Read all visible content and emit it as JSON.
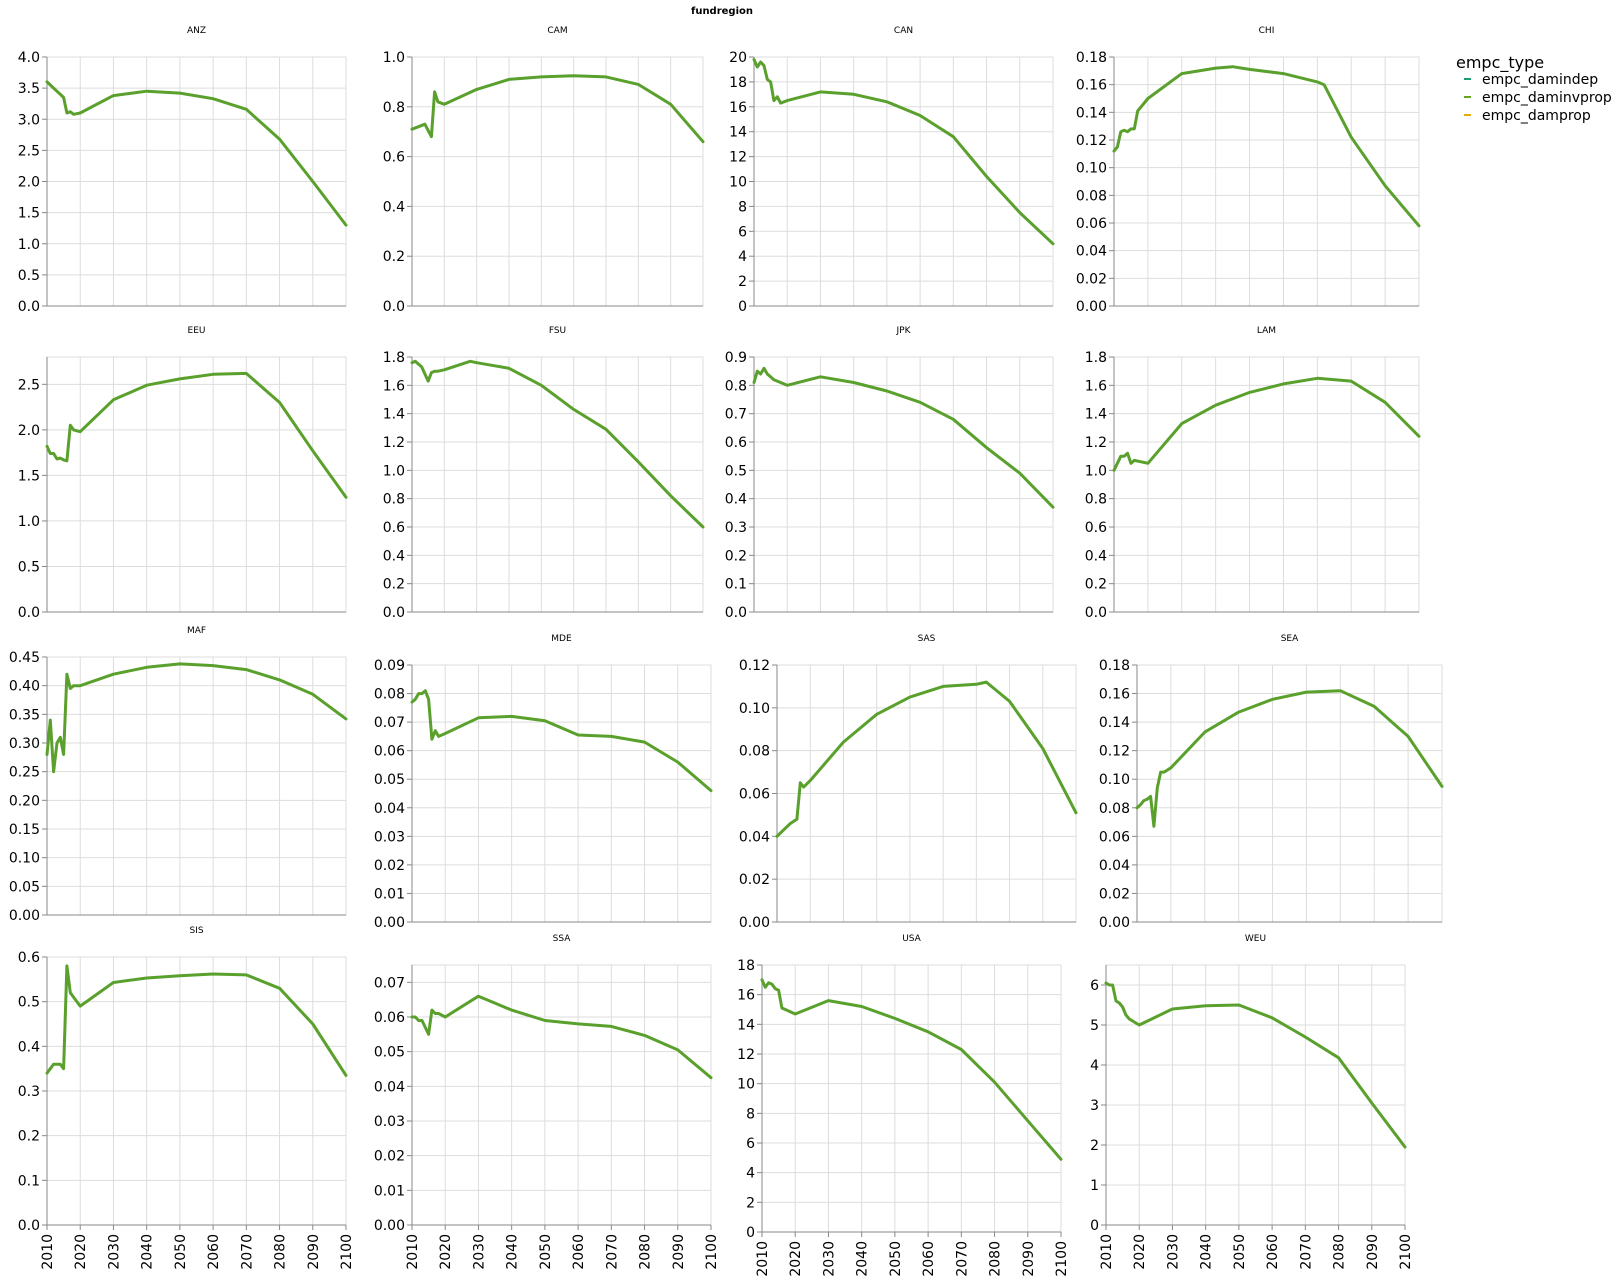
{
  "chart_data": {
    "type": "line",
    "title": "fundregion",
    "x_ticks": [
      2010,
      2020,
      2030,
      2040,
      2050,
      2060,
      2070,
      2080,
      2090,
      2100
    ],
    "xlim": [
      2010,
      2100
    ],
    "legend": {
      "title": "empc_type",
      "placement": "top-right",
      "entries": [
        {
          "name": "empc_damindep",
          "color": "#1b9e77"
        },
        {
          "name": "empc_daminvprop",
          "color": "#66a61e"
        },
        {
          "name": "empc_damprop",
          "color": "#e6ab02"
        }
      ]
    },
    "line_color": "#5aa02c",
    "panels": [
      {
        "region": "ANZ",
        "ylim": [
          0,
          4
        ],
        "y_ticks": [
          "0.0",
          "0.5",
          "1.0",
          "1.5",
          "2.0",
          "2.5",
          "3.0",
          "3.5",
          "4.0"
        ],
        "x": [
          2010,
          2012,
          2014,
          2015,
          2016,
          2017,
          2018,
          2020,
          2030,
          2040,
          2050,
          2060,
          2070,
          2080,
          2090,
          2100
        ],
        "y": [
          3.6,
          3.5,
          3.4,
          3.35,
          3.1,
          3.12,
          3.08,
          3.1,
          3.38,
          3.45,
          3.42,
          3.33,
          3.16,
          2.68,
          2.0,
          1.3
        ]
      },
      {
        "region": "CAM",
        "ylim": [
          0,
          1
        ],
        "y_ticks": [
          "0.0",
          "0.2",
          "0.4",
          "0.6",
          "0.8",
          "1.0"
        ],
        "x": [
          2010,
          2012,
          2014,
          2016,
          2017,
          2018,
          2020,
          2030,
          2040,
          2050,
          2060,
          2070,
          2080,
          2090,
          2100
        ],
        "y": [
          0.71,
          0.72,
          0.73,
          0.68,
          0.86,
          0.82,
          0.81,
          0.87,
          0.91,
          0.92,
          0.925,
          0.92,
          0.89,
          0.81,
          0.66
        ]
      },
      {
        "region": "CAN",
        "ylim": [
          0,
          20
        ],
        "y_ticks": [
          "0",
          "2",
          "4",
          "6",
          "8",
          "10",
          "12",
          "14",
          "16",
          "18",
          "20"
        ],
        "x": [
          2010,
          2011,
          2012,
          2013,
          2014,
          2015,
          2016,
          2017,
          2018,
          2020,
          2030,
          2040,
          2050,
          2060,
          2070,
          2080,
          2090,
          2100
        ],
        "y": [
          19.8,
          19.2,
          19.6,
          19.3,
          18.2,
          18.0,
          16.5,
          16.8,
          16.3,
          16.5,
          17.2,
          17.0,
          16.4,
          15.3,
          13.6,
          10.4,
          7.5,
          5.0
        ]
      },
      {
        "region": "CHI",
        "ylim": [
          0,
          0.18
        ],
        "y_ticks": [
          "0.00",
          "0.02",
          "0.04",
          "0.06",
          "0.08",
          "0.10",
          "0.12",
          "0.14",
          "0.16",
          "0.18"
        ],
        "x": [
          2010,
          2011,
          2012,
          2013,
          2014,
          2015,
          2016,
          2017,
          2018,
          2020,
          2030,
          2040,
          2045,
          2050,
          2060,
          2070,
          2072,
          2080,
          2090,
          2100
        ],
        "y": [
          0.112,
          0.115,
          0.126,
          0.127,
          0.126,
          0.128,
          0.128,
          0.141,
          0.144,
          0.15,
          0.168,
          0.172,
          0.173,
          0.171,
          0.168,
          0.162,
          0.16,
          0.122,
          0.087,
          0.058
        ]
      },
      {
        "region": "EEU",
        "ylim": [
          0,
          2.8
        ],
        "y_ticks": [
          "0.0",
          "0.5",
          "1.0",
          "1.5",
          "2.0",
          "2.5"
        ],
        "x": [
          2010,
          2011,
          2012,
          2013,
          2014,
          2015,
          2016,
          2017,
          2018,
          2020,
          2030,
          2040,
          2050,
          2060,
          2070,
          2080,
          2090,
          2100
        ],
        "y": [
          1.82,
          1.74,
          1.74,
          1.68,
          1.69,
          1.67,
          1.66,
          2.05,
          2.0,
          1.98,
          2.33,
          2.49,
          2.56,
          2.61,
          2.62,
          2.3,
          1.77,
          1.26
        ]
      },
      {
        "region": "FSU",
        "ylim": [
          0,
          1.8
        ],
        "y_ticks": [
          "0.0",
          "0.2",
          "0.4",
          "0.6",
          "0.8",
          "1.0",
          "1.2",
          "1.4",
          "1.6",
          "1.8"
        ],
        "x": [
          2010,
          2011,
          2012,
          2013,
          2014,
          2015,
          2016,
          2017,
          2018,
          2020,
          2028,
          2030,
          2040,
          2050,
          2060,
          2070,
          2080,
          2090,
          2100
        ],
        "y": [
          1.76,
          1.77,
          1.75,
          1.73,
          1.68,
          1.63,
          1.69,
          1.7,
          1.7,
          1.71,
          1.77,
          1.76,
          1.72,
          1.6,
          1.43,
          1.29,
          1.06,
          0.82,
          0.6
        ]
      },
      {
        "region": "JPK",
        "ylim": [
          0,
          0.9
        ],
        "y_ticks": [
          "0.0",
          "0.1",
          "0.2",
          "0.3",
          "0.4",
          "0.5",
          "0.6",
          "0.7",
          "0.8",
          "0.9"
        ],
        "x": [
          2010,
          2011,
          2012,
          2013,
          2014,
          2015,
          2016,
          2018,
          2020,
          2030,
          2040,
          2050,
          2060,
          2070,
          2080,
          2090,
          2100
        ],
        "y": [
          0.81,
          0.85,
          0.84,
          0.86,
          0.84,
          0.83,
          0.82,
          0.81,
          0.8,
          0.83,
          0.81,
          0.78,
          0.74,
          0.68,
          0.58,
          0.49,
          0.37
        ]
      },
      {
        "region": "LAM",
        "ylim": [
          0,
          1.8
        ],
        "y_ticks": [
          "0.0",
          "0.2",
          "0.4",
          "0.6",
          "0.8",
          "1.0",
          "1.2",
          "1.4",
          "1.6",
          "1.8"
        ],
        "x": [
          2010,
          2011,
          2012,
          2013,
          2014,
          2015,
          2016,
          2018,
          2020,
          2030,
          2040,
          2050,
          2060,
          2070,
          2080,
          2090,
          2100
        ],
        "y": [
          1.0,
          1.05,
          1.1,
          1.1,
          1.12,
          1.05,
          1.07,
          1.06,
          1.05,
          1.33,
          1.46,
          1.55,
          1.61,
          1.65,
          1.63,
          1.48,
          1.24
        ]
      },
      {
        "region": "MAF",
        "ylim": [
          0,
          0.45
        ],
        "y_ticks": [
          "0.00",
          "0.05",
          "0.10",
          "0.15",
          "0.20",
          "0.25",
          "0.30",
          "0.35",
          "0.40",
          "0.45"
        ],
        "x": [
          2010,
          2011,
          2012,
          2013,
          2014,
          2015,
          2016,
          2017,
          2018,
          2020,
          2030,
          2040,
          2050,
          2060,
          2070,
          2080,
          2090,
          2100
        ],
        "y": [
          0.28,
          0.34,
          0.25,
          0.3,
          0.31,
          0.28,
          0.42,
          0.395,
          0.4,
          0.4,
          0.42,
          0.432,
          0.438,
          0.435,
          0.428,
          0.41,
          0.385,
          0.342
        ]
      },
      {
        "region": "MDE",
        "ylim": [
          0,
          0.09
        ],
        "y_ticks": [
          "0.00",
          "0.01",
          "0.02",
          "0.03",
          "0.04",
          "0.05",
          "0.06",
          "0.07",
          "0.08",
          "0.09"
        ],
        "x": [
          2010,
          2011,
          2012,
          2013,
          2014,
          2015,
          2016,
          2017,
          2018,
          2020,
          2030,
          2040,
          2050,
          2060,
          2070,
          2080,
          2090,
          2100
        ],
        "y": [
          0.077,
          0.078,
          0.08,
          0.08,
          0.081,
          0.078,
          0.064,
          0.067,
          0.065,
          0.066,
          0.0715,
          0.072,
          0.0705,
          0.0655,
          0.065,
          0.063,
          0.056,
          0.046
        ]
      },
      {
        "region": "SAS",
        "ylim": [
          0,
          0.12
        ],
        "y_ticks": [
          "0.00",
          "0.02",
          "0.04",
          "0.06",
          "0.08",
          "0.10",
          "0.12"
        ],
        "x": [
          2010,
          2012,
          2014,
          2016,
          2017,
          2018,
          2020,
          2030,
          2040,
          2050,
          2060,
          2070,
          2073,
          2080,
          2090,
          2100
        ],
        "y": [
          0.04,
          0.043,
          0.046,
          0.048,
          0.065,
          0.063,
          0.066,
          0.084,
          0.097,
          0.105,
          0.11,
          0.111,
          0.112,
          0.103,
          0.081,
          0.051
        ]
      },
      {
        "region": "SEA",
        "ylim": [
          0,
          0.18
        ],
        "y_ticks": [
          "0.00",
          "0.02",
          "0.04",
          "0.06",
          "0.08",
          "0.10",
          "0.12",
          "0.14",
          "0.16",
          "0.18"
        ],
        "x": [
          2010,
          2011,
          2012,
          2013,
          2014,
          2015,
          2016,
          2017,
          2018,
          2020,
          2030,
          2040,
          2050,
          2060,
          2070,
          2080,
          2090,
          2100
        ],
        "y": [
          0.08,
          0.082,
          0.085,
          0.086,
          0.088,
          0.067,
          0.094,
          0.105,
          0.105,
          0.108,
          0.133,
          0.147,
          0.156,
          0.161,
          0.162,
          0.151,
          0.13,
          0.095
        ]
      },
      {
        "region": "SIS",
        "ylim": [
          0,
          0.6
        ],
        "y_ticks": [
          "0.0",
          "0.1",
          "0.2",
          "0.3",
          "0.4",
          "0.5",
          "0.6"
        ],
        "x": [
          2010,
          2011,
          2012,
          2013,
          2014,
          2015,
          2016,
          2017,
          2018,
          2020,
          2030,
          2040,
          2050,
          2060,
          2070,
          2080,
          2090,
          2100
        ],
        "y": [
          0.34,
          0.35,
          0.36,
          0.36,
          0.36,
          0.35,
          0.58,
          0.52,
          0.51,
          0.49,
          0.543,
          0.553,
          0.558,
          0.562,
          0.56,
          0.53,
          0.45,
          0.335
        ]
      },
      {
        "region": "SSA",
        "ylim": [
          0,
          0.075
        ],
        "y_ticks": [
          "0.00",
          "0.01",
          "0.02",
          "0.03",
          "0.04",
          "0.05",
          "0.06",
          "0.07"
        ],
        "x": [
          2010,
          2011,
          2012,
          2013,
          2014,
          2015,
          2016,
          2017,
          2018,
          2020,
          2030,
          2040,
          2050,
          2060,
          2070,
          2080,
          2090,
          2100
        ],
        "y": [
          0.06,
          0.06,
          0.059,
          0.059,
          0.057,
          0.055,
          0.062,
          0.061,
          0.061,
          0.06,
          0.066,
          0.062,
          0.059,
          0.058,
          0.0573,
          0.0547,
          0.0505,
          0.0425
        ]
      },
      {
        "region": "USA",
        "ylim": [
          0,
          18
        ],
        "y_ticks": [
          "0",
          "2",
          "4",
          "6",
          "8",
          "10",
          "12",
          "14",
          "16",
          "18"
        ],
        "x": [
          2010,
          2011,
          2012,
          2013,
          2014,
          2015,
          2016,
          2018,
          2020,
          2030,
          2040,
          2050,
          2060,
          2070,
          2080,
          2090,
          2100
        ],
        "y": [
          17.0,
          16.5,
          16.8,
          16.7,
          16.4,
          16.3,
          15.1,
          14.9,
          14.7,
          15.6,
          15.2,
          14.4,
          13.5,
          12.3,
          10.1,
          7.5,
          4.9
        ]
      },
      {
        "region": "WEU",
        "ylim": [
          0,
          6.5
        ],
        "y_ticks": [
          "0",
          "1",
          "2",
          "3",
          "4",
          "5",
          "6"
        ],
        "x": [
          2010,
          2011,
          2012,
          2013,
          2014,
          2015,
          2016,
          2017,
          2018,
          2020,
          2030,
          2040,
          2050,
          2060,
          2070,
          2080,
          2090,
          2100
        ],
        "y": [
          6.05,
          6.0,
          6.0,
          5.6,
          5.55,
          5.45,
          5.25,
          5.15,
          5.1,
          5.0,
          5.4,
          5.48,
          5.5,
          5.18,
          4.7,
          4.18,
          3.05,
          1.95
        ]
      }
    ]
  }
}
